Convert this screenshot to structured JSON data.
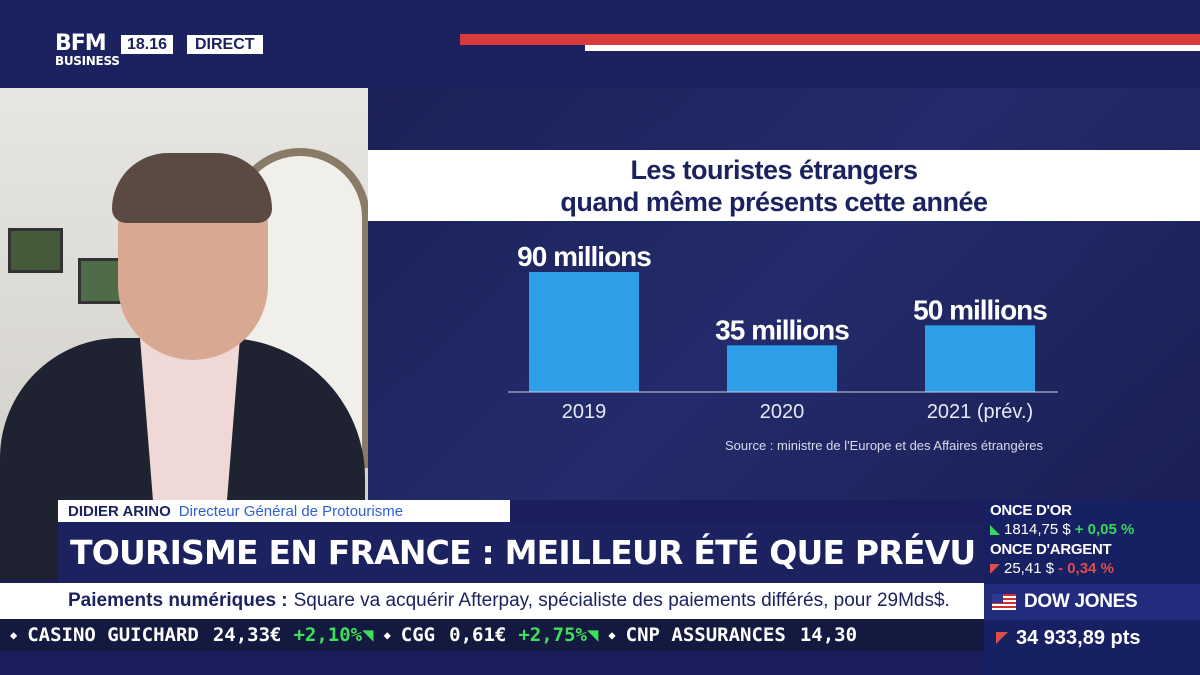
{
  "header": {
    "logo_top": "BFM",
    "logo_bottom": "BUSINESS",
    "time": "18.16",
    "live_label": "DIRECT"
  },
  "graphic": {
    "title_line1": "Les touristes étrangers",
    "title_line2": "quand même présents cette année",
    "source": "Source : ministre de l'Europe et des Affaires étrangères"
  },
  "chart_data": {
    "type": "bar",
    "title": "Les touristes étrangers quand même présents cette année",
    "categories": [
      "2019",
      "2020",
      "2021 (prév.)"
    ],
    "values": [
      90,
      35,
      50
    ],
    "value_labels": [
      "90 millions",
      "35 millions",
      "50 millions"
    ],
    "unit": "millions",
    "ylim": [
      0,
      90
    ],
    "grid": false,
    "bar_color": "#2f9ee8"
  },
  "guest": {
    "name": "DIDIER ARINO",
    "role": "Directeur Général de Protourisme"
  },
  "headline": "TOURISME EN FRANCE : MEILLEUR ÉTÉ QUE PRÉVU ?",
  "news": {
    "label": "Paiements numériques :",
    "text": "Square va acquérir Afterpay, spécialiste des paiements différés, pour 29Mds$."
  },
  "stocks": [
    {
      "name": "CASINO GUICHARD",
      "value": "24,33€",
      "change": "+2,10%"
    },
    {
      "name": "CGG",
      "value": "0,61€",
      "change": "+2,75%"
    },
    {
      "name": "CNP ASSURANCES",
      "value": "14,30",
      "change": ""
    }
  ],
  "market": {
    "gold_title": "ONCE D'OR",
    "gold_value": "1814,75 $",
    "gold_change": "+ 0,05 %",
    "silver_title": "ONCE D'ARGENT",
    "silver_value": "25,41 $",
    "silver_change": "- 0,34 %",
    "index_name": "DOW JONES",
    "index_value": "34 933,89 pts"
  },
  "colors": {
    "brand": "#1c2260",
    "accent_red": "#d93b3b",
    "up": "#36d85a",
    "down": "#e04b4b"
  }
}
